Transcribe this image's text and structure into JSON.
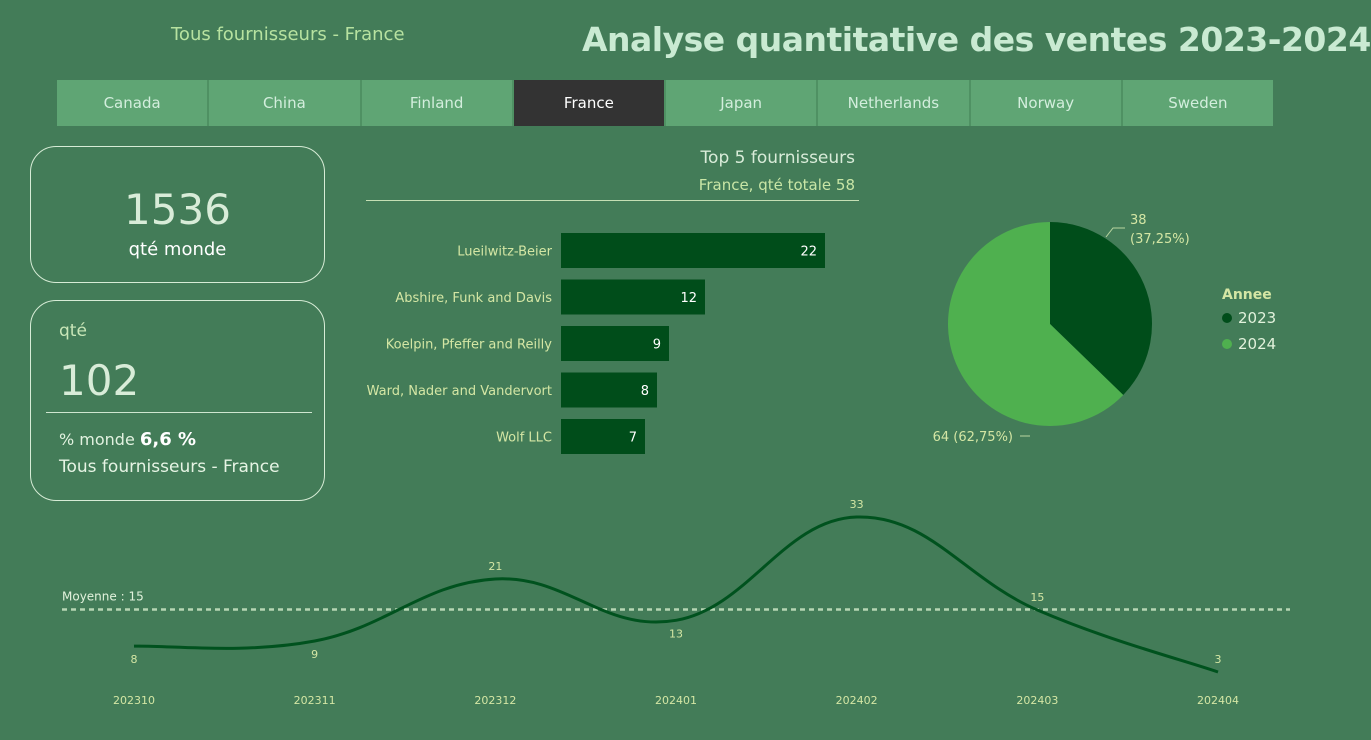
{
  "header": {
    "subtitle": "Tous fournisseurs - France",
    "title": "Analyse quantitative des ventes 2023-2024"
  },
  "tabs": [
    {
      "label": "Canada",
      "active": false
    },
    {
      "label": "China",
      "active": false
    },
    {
      "label": "Finland",
      "active": false
    },
    {
      "label": "France",
      "active": true
    },
    {
      "label": "Japan",
      "active": false
    },
    {
      "label": "Netherlands",
      "active": false
    },
    {
      "label": "Norway",
      "active": false
    },
    {
      "label": "Sweden",
      "active": false
    }
  ],
  "kpi_world": {
    "value": "1536",
    "label": "qté monde"
  },
  "kpi_qty": {
    "label": "qté",
    "value": "102",
    "pct_prefix": "% monde",
    "pct_value": "6,6 %",
    "footer": "Tous fournisseurs - France"
  },
  "colors": {
    "background": "#437c58",
    "bar": "#004d1a",
    "pie_2023": "#004d1a",
    "pie_2024": "#4fb04f",
    "line": "#00521e",
    "tab_active": "#333333",
    "tab": "#5fa574"
  },
  "chart_data": [
    {
      "type": "bar",
      "orientation": "horizontal",
      "title": "Top 5 fournisseurs",
      "subtitle": "France, qté totale 58",
      "categories": [
        "Lueilwitz-Beier",
        "Abshire, Funk and Davis",
        "Koelpin, Pfeffer and Reilly",
        "Ward, Nader and Vandervort",
        "Wolf LLC"
      ],
      "values": [
        22,
        12,
        9,
        8,
        7
      ],
      "xlim": [
        0,
        22
      ]
    },
    {
      "type": "pie",
      "legend_title": "Annee",
      "legend_position": "right",
      "categories": [
        "2023",
        "2024"
      ],
      "values": [
        38,
        64
      ],
      "labels": [
        [
          "38",
          "(37,25%)"
        ],
        [
          "64 (62,75%)"
        ]
      ]
    },
    {
      "type": "line",
      "x": [
        "202310",
        "202311",
        "202312",
        "202401",
        "202402",
        "202403",
        "202404"
      ],
      "values": [
        8,
        9,
        21,
        13,
        33,
        15,
        3
      ],
      "ylim": [
        3,
        33
      ],
      "reference_line": {
        "label": "Moyenne : 15",
        "value": 15
      }
    }
  ]
}
